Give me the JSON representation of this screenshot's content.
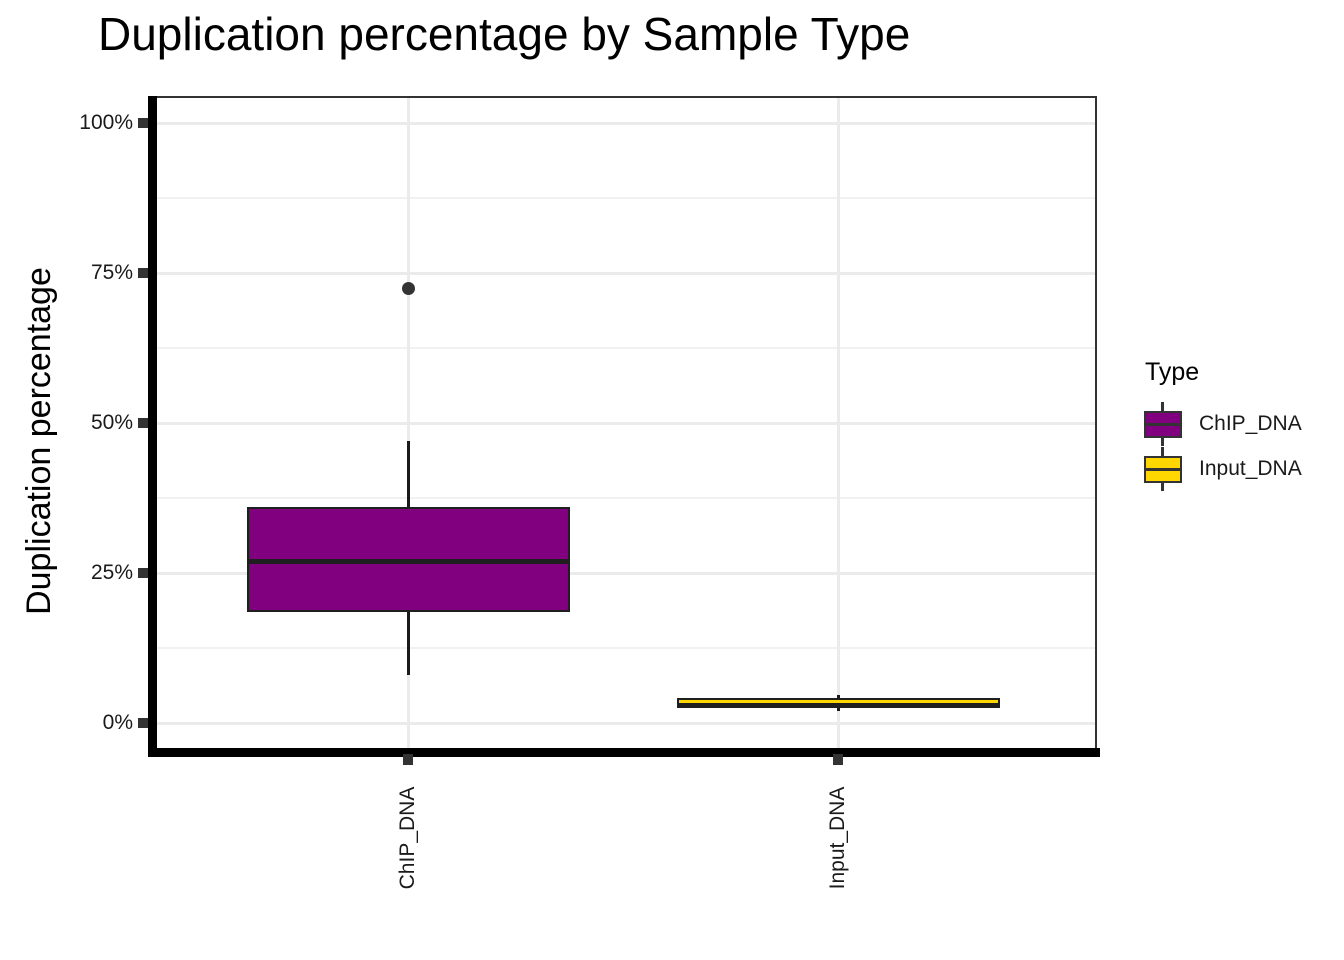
{
  "title": "Duplication percentage by Sample Type",
  "y_axis": {
    "label": "Duplication percentage"
  },
  "legend": {
    "title": "Type",
    "entries": [
      {
        "label": "ChIP_DNA",
        "color": "#800080"
      },
      {
        "label": "Input_DNA",
        "color": "#FFD700"
      }
    ]
  },
  "chart_data": {
    "type": "boxplot",
    "title": "Duplication percentage by Sample Type",
    "xlabel": "",
    "ylabel": "Duplication percentage",
    "categories": [
      "ChIP_DNA",
      "Input_DNA"
    ],
    "y_ticks": [
      {
        "value": 0,
        "label": "0%"
      },
      {
        "value": 25,
        "label": "25%"
      },
      {
        "value": 50,
        "label": "50%"
      },
      {
        "value": 75,
        "label": "75%"
      },
      {
        "value": 100,
        "label": "100%"
      }
    ],
    "y_minor_ticks": [
      12.5,
      37.5,
      62.5,
      87.5
    ],
    "ylim": [
      -5,
      104.5
    ],
    "grid": true,
    "legend_position": "right",
    "series": [
      {
        "name": "ChIP_DNA",
        "fill_color": "#800080",
        "whisker_low": 8,
        "q1": 18.5,
        "median": 27,
        "q3": 36,
        "whisker_high": 47,
        "outliers": [
          72.5
        ]
      },
      {
        "name": "Input_DNA",
        "fill_color": "#FFD700",
        "whisker_low": 2,
        "q1": 2.5,
        "median": 2.9,
        "q3": 4.2,
        "whisker_high": 4.7,
        "outliers": []
      }
    ]
  }
}
